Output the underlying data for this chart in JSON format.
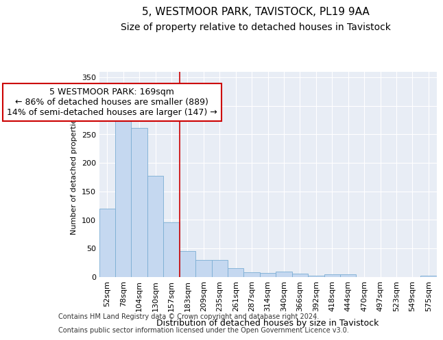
{
  "title": "5, WESTMOOR PARK, TAVISTOCK, PL19 9AA",
  "subtitle": "Size of property relative to detached houses in Tavistock",
  "xlabel": "Distribution of detached houses by size in Tavistock",
  "ylabel": "Number of detached properties",
  "categories": [
    "52sqm",
    "78sqm",
    "104sqm",
    "130sqm",
    "157sqm",
    "183sqm",
    "209sqm",
    "235sqm",
    "261sqm",
    "287sqm",
    "314sqm",
    "340sqm",
    "366sqm",
    "392sqm",
    "418sqm",
    "444sqm",
    "470sqm",
    "497sqm",
    "523sqm",
    "549sqm",
    "575sqm"
  ],
  "values": [
    120,
    281,
    261,
    177,
    96,
    45,
    29,
    29,
    15,
    8,
    7,
    9,
    5,
    2,
    4,
    4,
    0,
    0,
    0,
    0,
    2
  ],
  "bar_color": "#c5d8f0",
  "bar_edge_color": "#7aadd4",
  "vline_x": 4.5,
  "vline_color": "#cc0000",
  "annotation_text": "5 WESTMOOR PARK: 169sqm\n← 86% of detached houses are smaller (889)\n14% of semi-detached houses are larger (147) →",
  "annotation_box_color": "#ffffff",
  "annotation_box_edge": "#cc0000",
  "ylim": [
    0,
    360
  ],
  "yticks": [
    0,
    50,
    100,
    150,
    200,
    250,
    300,
    350
  ],
  "background_color": "#e8edf5",
  "footer_line1": "Contains HM Land Registry data © Crown copyright and database right 2024.",
  "footer_line2": "Contains public sector information licensed under the Open Government Licence v3.0.",
  "title_fontsize": 11,
  "subtitle_fontsize": 10,
  "annot_fontsize": 9,
  "ylabel_fontsize": 8,
  "xlabel_fontsize": 9,
  "tick_fontsize": 8
}
